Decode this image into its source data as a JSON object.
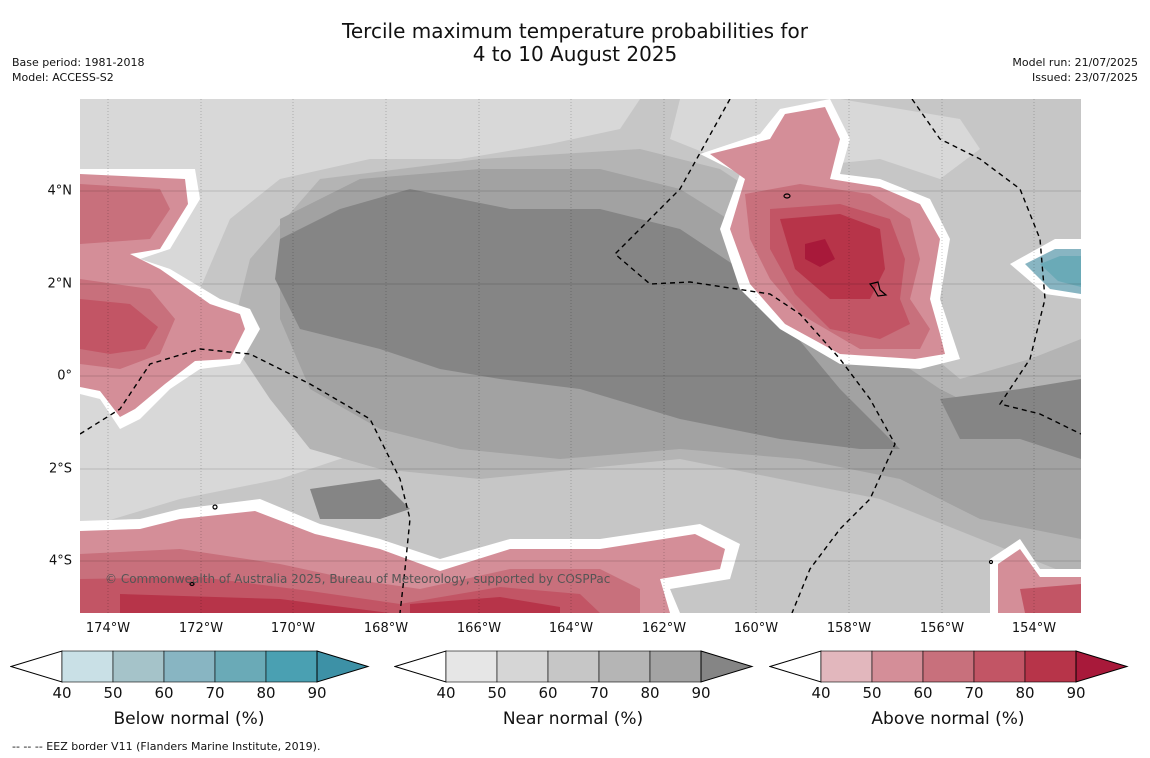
{
  "header": {
    "title_line1": "Tercile maximum temperature probabilities for",
    "title_line2": "4 to 10 August 2025",
    "base_period": "Base period: 1981-2018",
    "model": "Model: ACCESS-S2",
    "model_run": "Model run: 21/07/2025",
    "issued": "Issued: 23/07/2025"
  },
  "map": {
    "lat_labels": [
      "4°N",
      "2°N",
      "0°",
      "2°S",
      "4°S"
    ],
    "lon_labels": [
      "174°W",
      "172°W",
      "170°W",
      "168°W",
      "166°W",
      "164°W",
      "162°W",
      "160°W",
      "158°W",
      "156°W",
      "154°W"
    ],
    "copyright": "© Commonwealth of Australia 2025, Bureau of Meteorology, supported by COSPPac",
    "colors": {
      "near": [
        "#d8d8d8",
        "#c6c6c6",
        "#b4b4b4",
        "#a2a2a2",
        "#858585"
      ],
      "above": [
        "#e2b7bd",
        "#d48e98",
        "#c8707c",
        "#c25565",
        "#b73449",
        "#a8193a"
      ],
      "below": [
        "#c9e0e6",
        "#a5c3c9",
        "#88b5c2",
        "#6aaab7",
        "#4aa0b2"
      ]
    }
  },
  "colorbars": [
    {
      "title": "Below normal (%)",
      "ticks": [
        "40",
        "50",
        "60",
        "70",
        "80",
        "90"
      ],
      "colors": [
        "#ffffff",
        "#c9e0e6",
        "#a5c3c9",
        "#88b5c2",
        "#6aaab7",
        "#4aa0b2",
        "#3d91a6"
      ]
    },
    {
      "title": "Near normal (%)",
      "ticks": [
        "40",
        "50",
        "60",
        "70",
        "80",
        "90"
      ],
      "colors": [
        "#ffffff",
        "#e6e6e6",
        "#d6d6d6",
        "#c6c6c6",
        "#b5b5b5",
        "#a3a3a3",
        "#858585"
      ]
    },
    {
      "title": "Above normal (%)",
      "ticks": [
        "40",
        "50",
        "60",
        "70",
        "80",
        "90"
      ],
      "colors": [
        "#ffffff",
        "#e2b7bd",
        "#d48e98",
        "#c8707c",
        "#c25565",
        "#b73449",
        "#a8193a"
      ]
    }
  ],
  "footnote": "--  --  -- EEZ border V11 (Flanders Marine Institute, 2019)."
}
